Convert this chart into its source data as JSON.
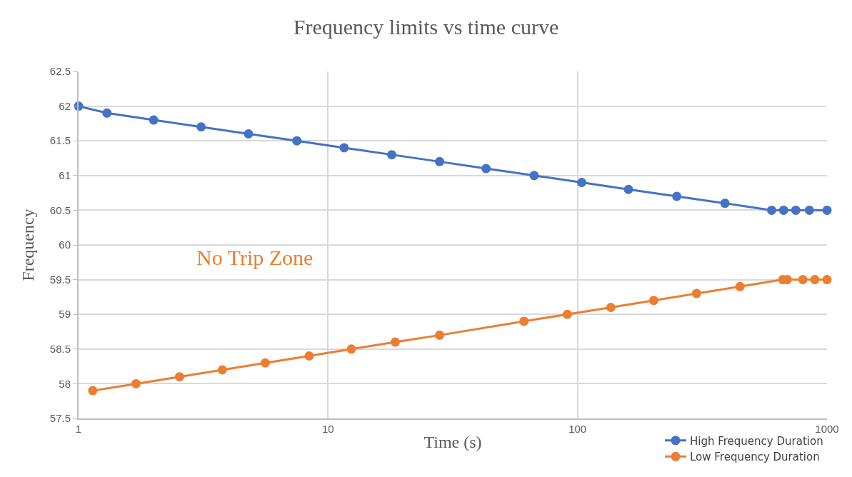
{
  "chart_data": {
    "type": "line",
    "title": "Frequency limits vs time curve",
    "xlabel": "Time (s)",
    "ylabel": "Frequency",
    "log": "x",
    "xlim": [
      1,
      1000
    ],
    "xticks": [
      1,
      10,
      100,
      1000
    ],
    "ylim": [
      57.5,
      62.5
    ],
    "yticks": [
      57.5,
      58,
      58.5,
      59,
      59.5,
      60,
      60.5,
      61,
      61.5,
      62,
      62.5
    ],
    "grid": true,
    "legend": "bottom right",
    "marker": "circle",
    "line_style": "solid",
    "annotations": [
      "No Trip Zone"
    ],
    "series": [
      {
        "name": "High Frequency Duration",
        "color": "#4472c4",
        "x": [
          1,
          1.3,
          2,
          3.1,
          4.8,
          7.5,
          11.6,
          18,
          28,
          43,
          67,
          104,
          160,
          250,
          390,
          600,
          670,
          750,
          850,
          1000
        ],
        "values": [
          62,
          61.9,
          61.8,
          61.7,
          61.6,
          61.5,
          61.4,
          61.3,
          61.2,
          61.1,
          61,
          60.9,
          60.8,
          60.7,
          60.6,
          60.5,
          60.5,
          60.5,
          60.5,
          60.5
        ]
      },
      {
        "name": "Low Frequency Duration",
        "color": "#ed7d31",
        "x": [
          1.14,
          1.7,
          2.54,
          3.77,
          5.6,
          8.4,
          12.4,
          18.6,
          28,
          61,
          91,
          136,
          202,
          300,
          448,
          665,
          693,
          800,
          894,
          1000
        ],
        "values": [
          57.9,
          58,
          58.1,
          58.2,
          58.3,
          58.4,
          58.5,
          58.6,
          58.7,
          58.9,
          59,
          59.1,
          59.2,
          59.3,
          59.4,
          59.5,
          59.5,
          59.5,
          59.5,
          59.5
        ]
      }
    ]
  }
}
